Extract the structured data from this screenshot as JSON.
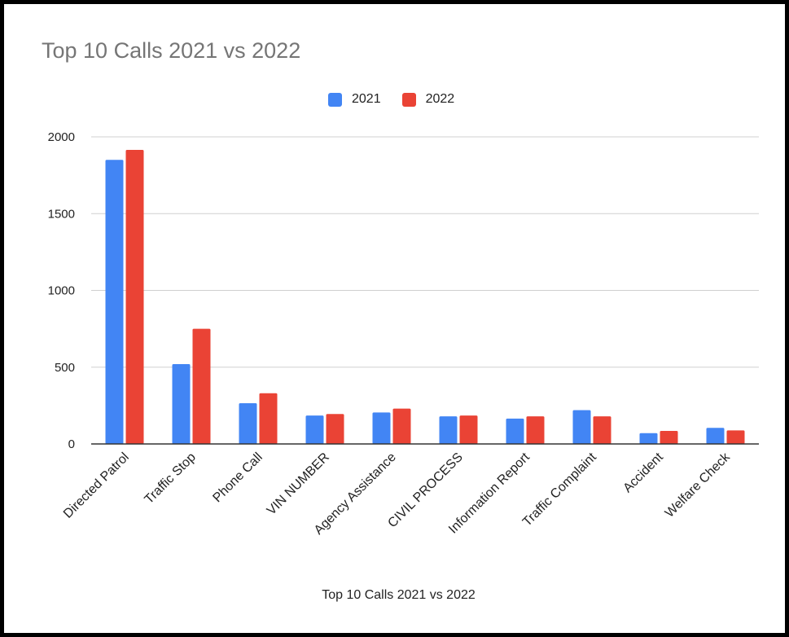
{
  "chart_data": {
    "type": "bar",
    "title": "Top 10 Calls 2021 vs 2022",
    "xlabel": "Top 10 Calls 2021 vs 2022",
    "ylabel": "",
    "ylim": [
      0,
      2000
    ],
    "yticks": [
      "0",
      "500",
      "1000",
      "1500",
      "2000"
    ],
    "grid": true,
    "legend_position": "top",
    "categories": [
      "Directed Patrol",
      "Traffic Stop",
      "Phone Call",
      "VIN NUMBER",
      "Agency Assistance",
      "CIVIL PROCESS",
      "Information Report",
      "Traffic Complaint",
      "Accident",
      "Welfare Check"
    ],
    "series": [
      {
        "name": "2021",
        "color": "#4285f4",
        "values": [
          1850,
          520,
          265,
          185,
          205,
          180,
          165,
          220,
          70,
          105
        ]
      },
      {
        "name": "2022",
        "color": "#ea4335",
        "values": [
          1915,
          750,
          330,
          195,
          230,
          185,
          180,
          180,
          85,
          88
        ]
      }
    ]
  }
}
